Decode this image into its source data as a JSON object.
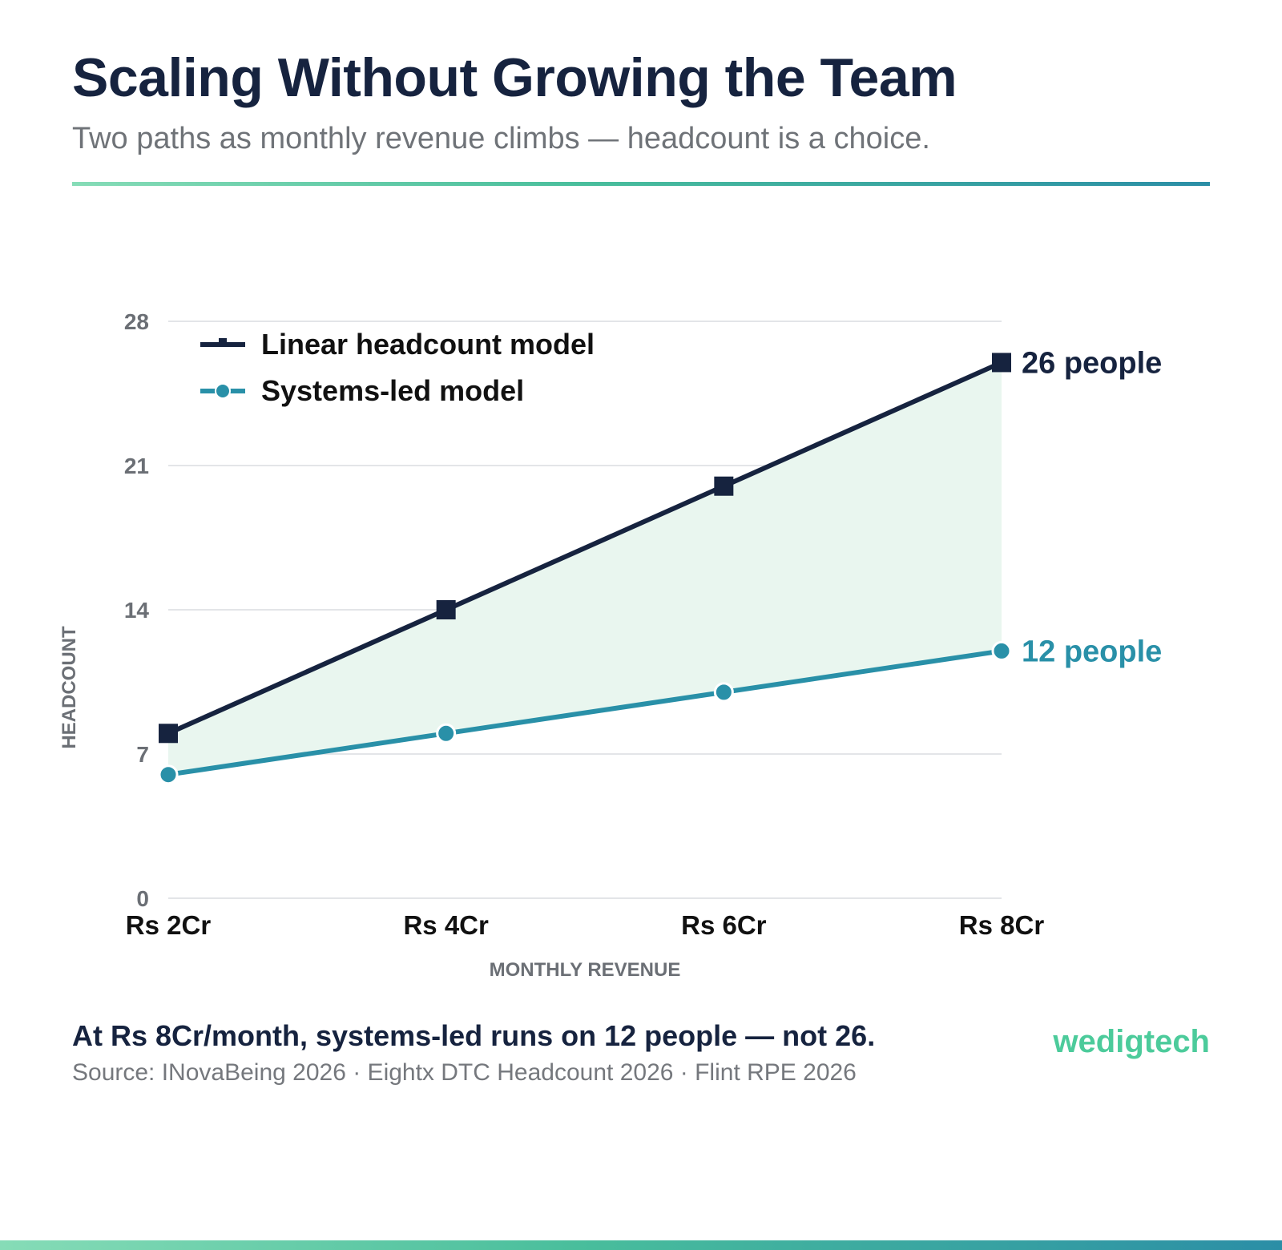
{
  "header": {
    "title": "Scaling Without Growing the Team",
    "subtitle": "Two paths as monthly revenue climbs — headcount is a choice."
  },
  "chart_data": {
    "type": "line",
    "categories": [
      "Rs 2Cr",
      "Rs 4Cr",
      "Rs 6Cr",
      "Rs 8Cr"
    ],
    "series": [
      {
        "name": "Linear headcount model",
        "values": [
          8,
          14,
          20,
          26
        ],
        "color": "#16233f",
        "marker": "square",
        "end_label": "26 people"
      },
      {
        "name": "Systems-led model",
        "values": [
          6,
          8,
          10,
          12
        ],
        "color": "#2990a8",
        "marker": "circle",
        "end_label": "12 people"
      }
    ],
    "fill_between": {
      "color": "#e9f6ef"
    },
    "xlabel": "MONTHLY REVENUE",
    "ylabel": "HEADCOUNT",
    "ylim": [
      0,
      28
    ],
    "yticks": [
      0,
      7,
      14,
      21,
      28
    ],
    "grid": true,
    "legend_position": "top-left"
  },
  "footer": {
    "takeaway": "At Rs 8Cr/month, systems-led runs on 12 people — not 26.",
    "source": "Source: INovaBeing 2026 · Eightx DTC Headcount 2026 · Flint RPE 2026",
    "brand": "wedigtech"
  },
  "colors": {
    "navy": "#16233f",
    "teal": "#2990a8",
    "green": "#4ccb9b",
    "gap_fill": "#e9f6ef",
    "grid": "#e3e5e8"
  }
}
